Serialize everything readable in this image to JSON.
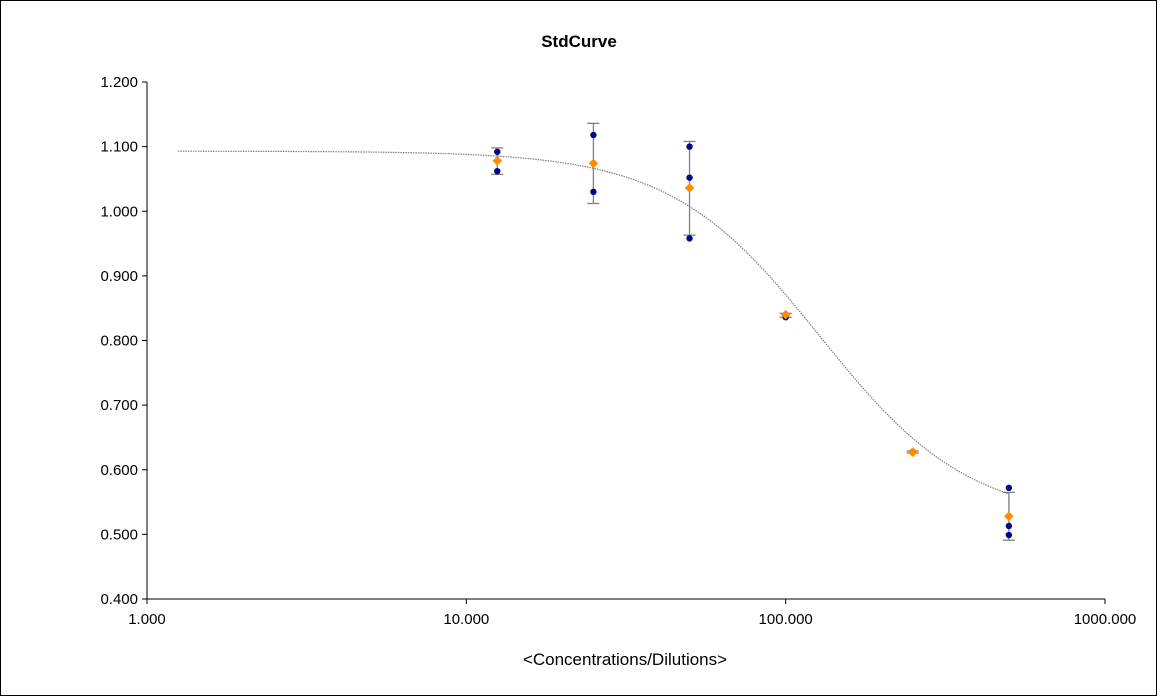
{
  "chart_data": {
    "type": "scatter",
    "title": "StdCurve",
    "xlabel": "<Concentrations/Dilutions>",
    "ylabel": "",
    "x_scale": "log",
    "xlim": [
      1,
      1000
    ],
    "ylim": [
      0.4,
      1.2
    ],
    "x_ticks": [
      1,
      10,
      100,
      1000
    ],
    "x_tick_labels": [
      "1.000",
      "10.000",
      "100.000",
      "1000.000"
    ],
    "y_ticks": [
      0.4,
      0.5,
      0.6,
      0.7,
      0.8,
      0.9,
      1.0,
      1.1,
      1.2
    ],
    "y_tick_labels": [
      "0.400",
      "0.500",
      "0.600",
      "0.700",
      "0.800",
      "0.900",
      "1.000",
      "1.100",
      "1.200"
    ],
    "grid": false,
    "legend": "none",
    "series": [
      {
        "kind": "replicates",
        "color": "#00008B",
        "points": [
          {
            "x": 12.5,
            "y": 1.092
          },
          {
            "x": 12.5,
            "y": 1.062
          },
          {
            "x": 25,
            "y": 1.118
          },
          {
            "x": 25,
            "y": 1.03
          },
          {
            "x": 50,
            "y": 1.1
          },
          {
            "x": 50,
            "y": 1.052
          },
          {
            "x": 50,
            "y": 0.958
          },
          {
            "x": 100,
            "y": 0.838
          },
          {
            "x": 100,
            "y": 0.836
          },
          {
            "x": 250,
            "y": 0.628
          },
          {
            "x": 250,
            "y": 0.627
          },
          {
            "x": 500,
            "y": 0.572
          },
          {
            "x": 500,
            "y": 0.513
          },
          {
            "x": 500,
            "y": 0.499
          }
        ]
      },
      {
        "kind": "mean",
        "color": "#FF8C00",
        "points": [
          {
            "x": 12.5,
            "y": 1.078,
            "err_low": 1.057,
            "err_high": 1.098
          },
          {
            "x": 25,
            "y": 1.074,
            "err_low": 1.012,
            "err_high": 1.136
          },
          {
            "x": 50,
            "y": 1.036,
            "err_low": 0.963,
            "err_high": 1.108
          },
          {
            "x": 100,
            "y": 0.84,
            "err_low": 0.836,
            "err_high": 0.842
          },
          {
            "x": 250,
            "y": 0.627,
            "err_low": 0.626,
            "err_high": 0.629
          },
          {
            "x": 500,
            "y": 0.528,
            "err_low": 0.491,
            "err_high": 0.565
          }
        ]
      },
      {
        "kind": "fit",
        "color": "#808080",
        "model": "4PL",
        "params": {
          "top": 1.093,
          "bottom": 0.52,
          "ec50": 128,
          "hill": 1.85
        },
        "x_range": [
          1.25,
          500
        ]
      }
    ]
  }
}
